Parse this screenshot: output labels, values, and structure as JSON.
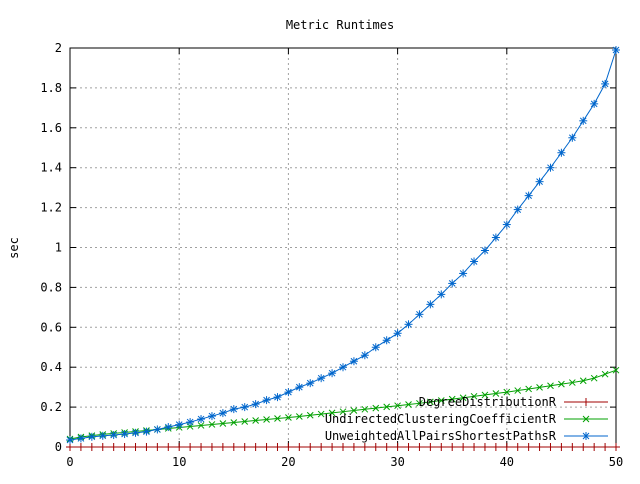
{
  "chart_data": {
    "type": "line",
    "title": "Metric Runtimes",
    "xlabel": "",
    "ylabel": "sec",
    "xlim": [
      0,
      50
    ],
    "ylim": [
      0,
      2
    ],
    "x_ticks": [
      0,
      10,
      20,
      30,
      40,
      50
    ],
    "x_tick_labels": [
      "0",
      "10",
      "20",
      "30",
      "40",
      "50"
    ],
    "y_ticks": [
      0,
      0.2,
      0.4,
      0.6,
      0.8,
      1,
      1.2,
      1.4,
      1.6,
      1.8,
      2
    ],
    "y_tick_labels": [
      "0",
      "0.2",
      "0.4",
      "0.6",
      "0.8",
      "1",
      "1.2",
      "1.4",
      "1.6",
      "1.8",
      "2"
    ],
    "grid": true,
    "legend_position": "bottom-right",
    "x": [
      0,
      1,
      2,
      3,
      4,
      5,
      6,
      7,
      8,
      9,
      10,
      11,
      12,
      13,
      14,
      15,
      16,
      17,
      18,
      19,
      20,
      21,
      22,
      23,
      24,
      25,
      26,
      27,
      28,
      29,
      30,
      31,
      32,
      33,
      34,
      35,
      36,
      37,
      38,
      39,
      40,
      41,
      42,
      43,
      44,
      45,
      46,
      47,
      48,
      49,
      50
    ],
    "series": [
      {
        "name": "DegreeDistributionR",
        "color": "#a00000",
        "marker": "plus",
        "values": [
          0,
          0,
          0,
          0,
          0,
          0,
          0,
          0,
          0,
          0,
          0,
          0,
          0,
          0,
          0,
          0,
          0,
          0,
          0,
          0,
          0,
          0,
          0,
          0,
          0,
          0,
          0,
          0,
          0,
          0,
          0,
          0,
          0,
          0,
          0,
          0,
          0,
          0,
          0,
          0,
          0,
          0,
          0,
          0,
          0,
          0,
          0,
          0,
          0,
          0,
          0
        ]
      },
      {
        "name": "UndirectedClusteringCoefficientR",
        "color": "#00a000",
        "marker": "cross",
        "values": [
          0.04,
          0.05,
          0.057,
          0.063,
          0.068,
          0.073,
          0.078,
          0.083,
          0.088,
          0.093,
          0.098,
          0.103,
          0.108,
          0.113,
          0.118,
          0.123,
          0.128,
          0.133,
          0.138,
          0.143,
          0.148,
          0.153,
          0.159,
          0.165,
          0.171,
          0.177,
          0.183,
          0.189,
          0.195,
          0.201,
          0.207,
          0.213,
          0.219,
          0.226,
          0.233,
          0.24,
          0.247,
          0.254,
          0.261,
          0.268,
          0.275,
          0.283,
          0.291,
          0.299,
          0.307,
          0.315,
          0.323,
          0.332,
          0.345,
          0.365,
          0.385
        ]
      },
      {
        "name": "UnweightedAllPairsShortestPathsR",
        "color": "#0066cc",
        "marker": "star",
        "values": [
          0.035,
          0.043,
          0.051,
          0.056,
          0.06,
          0.065,
          0.071,
          0.077,
          0.088,
          0.1,
          0.112,
          0.125,
          0.14,
          0.155,
          0.17,
          0.19,
          0.2,
          0.215,
          0.235,
          0.25,
          0.275,
          0.3,
          0.32,
          0.345,
          0.37,
          0.4,
          0.43,
          0.46,
          0.5,
          0.535,
          0.57,
          0.615,
          0.665,
          0.715,
          0.765,
          0.82,
          0.87,
          0.93,
          0.985,
          1.05,
          1.115,
          1.19,
          1.26,
          1.33,
          1.4,
          1.475,
          1.55,
          1.635,
          1.72,
          1.82,
          1.99
        ]
      }
    ]
  }
}
